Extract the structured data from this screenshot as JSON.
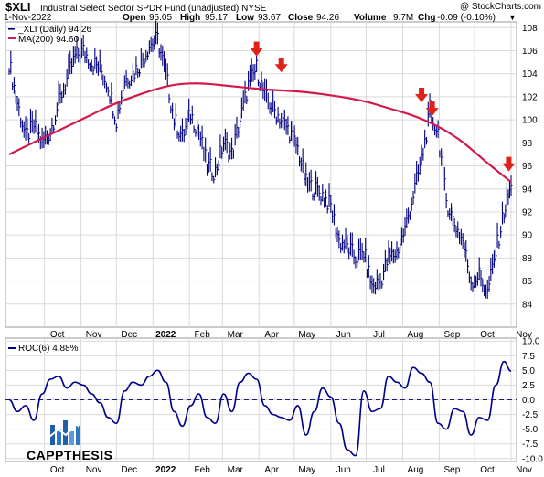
{
  "header": {
    "symbol": "$XLI",
    "fund_name": "Industrial Select Sector SPDR Fund (unadjusted) NYSE",
    "watermark": "@ StockCharts.com",
    "date": "1-Nov-2022",
    "open_label": "Open",
    "open": "95.05",
    "high_label": "High",
    "high": "95.17",
    "low_label": "Low",
    "low": "93.67",
    "close_label": "Close",
    "close": "94.26",
    "volume_label": "Volume",
    "volume": "9.7M",
    "chg_label": "Chg",
    "chg": "-0.09 (-0.10%)",
    "down_marker": "▼"
  },
  "legend": {
    "price": "_XLI (Daily) 94.26",
    "ma": "MA(200) 94.60",
    "roc": "ROC(6) 4.88%"
  },
  "logo": {
    "text": "CAPPTHESIS"
  },
  "colors": {
    "price_bar": "#00007f",
    "ma_line": "#d11a4a",
    "arrow": "#e0201a",
    "roc_line": "#00008b",
    "grid": "#d9d9d9"
  },
  "chart_data": [
    {
      "type": "line",
      "title": "Industrial Select Sector SPDR Fund (unadjusted) NYSE",
      "x_tick_labels": [
        "Oct",
        "Nov",
        "Dec",
        "2022",
        "Feb",
        "Mar",
        "Apr",
        "May",
        "Jun",
        "Jul",
        "Aug",
        "Sep",
        "Oct",
        "Nov"
      ],
      "x_range": [
        "2021-09-01",
        "2022-11-01"
      ],
      "ylim": [
        82,
        108.5
      ],
      "y_ticks": [
        84,
        86,
        88,
        90,
        92,
        94,
        96,
        98,
        100,
        102,
        104,
        106,
        108
      ],
      "grid": true,
      "series": [
        {
          "name": "_XLI (Daily) 94.26",
          "style": "ohlc-bars",
          "color": "#00007f",
          "x": [
            "2021-09-01",
            "2021-09-08",
            "2021-09-15",
            "2021-09-22",
            "2021-09-29",
            "2021-10-06",
            "2021-10-13",
            "2021-10-20",
            "2021-10-27",
            "2021-11-03",
            "2021-11-10",
            "2021-11-17",
            "2021-11-24",
            "2021-12-01",
            "2021-12-08",
            "2021-12-15",
            "2021-12-22",
            "2021-12-29",
            "2022-01-05",
            "2022-01-12",
            "2022-01-19",
            "2022-01-26",
            "2022-02-02",
            "2022-02-09",
            "2022-02-16",
            "2022-02-23",
            "2022-03-02",
            "2022-03-09",
            "2022-03-16",
            "2022-03-23",
            "2022-03-30",
            "2022-04-06",
            "2022-04-13",
            "2022-04-20",
            "2022-04-27",
            "2022-05-04",
            "2022-05-11",
            "2022-05-18",
            "2022-05-25",
            "2022-06-01",
            "2022-06-08",
            "2022-06-15",
            "2022-06-22",
            "2022-06-29",
            "2022-07-06",
            "2022-07-13",
            "2022-07-20",
            "2022-07-27",
            "2022-08-03",
            "2022-08-10",
            "2022-08-17",
            "2022-08-24",
            "2022-08-31",
            "2022-09-07",
            "2022-09-14",
            "2022-09-21",
            "2022-09-28",
            "2022-10-05",
            "2022-10-12",
            "2022-10-19",
            "2022-10-26",
            "2022-11-01"
          ],
          "close": [
            105.0,
            101.5,
            98.5,
            99.5,
            98.0,
            99.0,
            101.5,
            103.5,
            105.5,
            106.0,
            105.0,
            104.5,
            103.0,
            100.0,
            103.5,
            104.0,
            105.0,
            106.5,
            107.0,
            104.0,
            100.0,
            98.5,
            100.5,
            99.0,
            96.0,
            95.5,
            98.0,
            97.0,
            100.0,
            103.0,
            104.5,
            102.0,
            101.0,
            100.0,
            99.0,
            97.5,
            94.5,
            94.0,
            93.5,
            92.5,
            89.5,
            89.0,
            88.0,
            88.5,
            85.5,
            86.0,
            88.0,
            88.5,
            90.5,
            93.5,
            96.5,
            100.5,
            99.0,
            93.0,
            91.0,
            89.5,
            86.0,
            86.5,
            85.0,
            88.5,
            92.0,
            94.26
          ]
        },
        {
          "name": "MA(200) 94.60",
          "style": "line",
          "color": "#d11a4a",
          "x": [
            "2021-09-01",
            "2021-10-01",
            "2021-11-01",
            "2021-12-01",
            "2022-01-01",
            "2022-01-20",
            "2022-02-10",
            "2022-03-01",
            "2022-03-20",
            "2022-04-10",
            "2022-05-01",
            "2022-05-20",
            "2022-06-10",
            "2022-07-01",
            "2022-07-20",
            "2022-08-10",
            "2022-09-01",
            "2022-09-20",
            "2022-10-10",
            "2022-11-01"
          ],
          "values": [
            97.0,
            98.5,
            100.0,
            101.5,
            102.6,
            103.1,
            103.2,
            103.0,
            102.8,
            102.6,
            102.5,
            102.3,
            102.0,
            101.6,
            101.0,
            100.4,
            99.4,
            98.2,
            96.4,
            94.6
          ]
        }
      ],
      "annotations": [
        {
          "type": "down-arrow",
          "x": "2022-03-30",
          "y": 105.2
        },
        {
          "type": "down-arrow",
          "x": "2022-04-20",
          "y": 103.8
        },
        {
          "type": "down-arrow",
          "x": "2022-08-17",
          "y": 101.2
        },
        {
          "type": "down-arrow",
          "x": "2022-08-26",
          "y": 100.0
        },
        {
          "type": "down-arrow",
          "x": "2022-10-30",
          "y": 95.2
        }
      ]
    },
    {
      "type": "line",
      "x_tick_labels": [
        "Oct",
        "Nov",
        "Dec",
        "2022",
        "Feb",
        "Mar",
        "Apr",
        "May",
        "Jun",
        "Jul",
        "Aug",
        "Sep",
        "Oct",
        "Nov"
      ],
      "x_range": [
        "2021-09-01",
        "2022-11-01"
      ],
      "ylim": [
        -10.5,
        10.5
      ],
      "y_ticks": [
        -10.0,
        -7.5,
        -5.0,
        -2.5,
        0.0,
        2.5,
        5.0,
        7.5,
        10.0
      ],
      "grid": true,
      "reference_line": 0.0,
      "series": [
        {
          "name": "ROC(6) 4.88%",
          "color": "#00008b",
          "x": [
            "2021-09-01",
            "2021-09-08",
            "2021-09-15",
            "2021-09-22",
            "2021-09-29",
            "2021-10-06",
            "2021-10-13",
            "2021-10-20",
            "2021-10-27",
            "2021-11-03",
            "2021-11-10",
            "2021-11-17",
            "2021-11-24",
            "2021-12-01",
            "2021-12-08",
            "2021-12-15",
            "2021-12-22",
            "2021-12-29",
            "2022-01-05",
            "2022-01-12",
            "2022-01-19",
            "2022-01-26",
            "2022-02-02",
            "2022-02-09",
            "2022-02-16",
            "2022-02-23",
            "2022-03-02",
            "2022-03-09",
            "2022-03-16",
            "2022-03-23",
            "2022-03-30",
            "2022-04-06",
            "2022-04-13",
            "2022-04-20",
            "2022-04-27",
            "2022-05-04",
            "2022-05-11",
            "2022-05-18",
            "2022-05-25",
            "2022-06-01",
            "2022-06-08",
            "2022-06-15",
            "2022-06-22",
            "2022-06-29",
            "2022-07-06",
            "2022-07-13",
            "2022-07-20",
            "2022-07-27",
            "2022-08-03",
            "2022-08-10",
            "2022-08-17",
            "2022-08-24",
            "2022-08-31",
            "2022-09-07",
            "2022-09-14",
            "2022-09-21",
            "2022-09-28",
            "2022-10-05",
            "2022-10-12",
            "2022-10-19",
            "2022-10-26",
            "2022-11-01"
          ],
          "values": [
            0.0,
            -2.0,
            -1.0,
            -3.5,
            1.0,
            3.5,
            4.0,
            2.0,
            3.0,
            2.5,
            1.0,
            -0.5,
            -3.0,
            -4.0,
            1.5,
            3.0,
            2.5,
            4.0,
            5.0,
            3.0,
            -2.0,
            -4.5,
            -1.0,
            1.0,
            -3.0,
            -4.0,
            1.0,
            -2.0,
            3.0,
            4.5,
            3.5,
            -1.0,
            -2.5,
            -3.0,
            -3.5,
            -1.0,
            -6.0,
            -2.0,
            2.0,
            0.5,
            -4.0,
            -8.5,
            -9.5,
            1.5,
            -2.0,
            -1.5,
            4.0,
            3.0,
            2.0,
            5.5,
            4.5,
            3.0,
            -4.0,
            -5.0,
            -1.5,
            -2.0,
            -6.0,
            -3.0,
            -3.5,
            2.5,
            6.5,
            4.88
          ]
        }
      ]
    }
  ]
}
